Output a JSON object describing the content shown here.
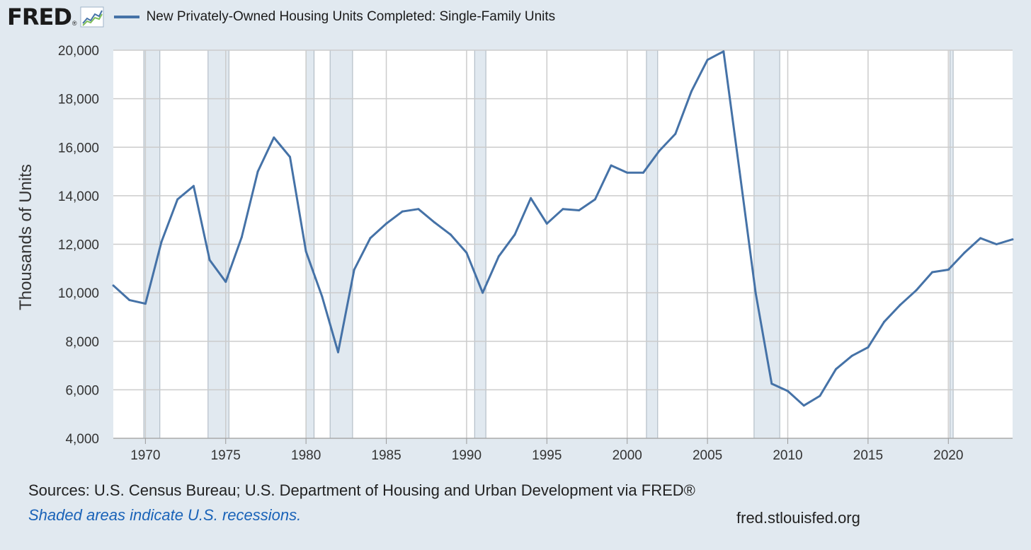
{
  "header": {
    "logo": "FRED",
    "logo_reg": "®",
    "legend_label": "New Privately-Owned Housing Units Completed: Single-Family Units"
  },
  "colors": {
    "series": "#4572a7",
    "recession": "#e1e9f0",
    "note": "#1a63b8",
    "grid": "#cccccc"
  },
  "footer": {
    "sources": "Sources: U.S. Census Bureau; U.S. Department of Housing and Urban Development via FRED®",
    "note": "Shaded areas indicate U.S. recessions.",
    "site": "fred.stlouisfed.org"
  },
  "chart_data": {
    "type": "line",
    "title": "",
    "ylabel": "Thousands of Units",
    "xlabel": "",
    "xlim": [
      1968,
      2024
    ],
    "ylim": [
      4000,
      20000
    ],
    "yticks": [
      4000,
      6000,
      8000,
      10000,
      12000,
      14000,
      16000,
      18000,
      20000
    ],
    "ytick_labels": [
      "4,000",
      "6,000",
      "8,000",
      "10,000",
      "12,000",
      "14,000",
      "16,000",
      "18,000",
      "20,000"
    ],
    "xticks": [
      1970,
      1975,
      1980,
      1985,
      1990,
      1995,
      2000,
      2005,
      2010,
      2015,
      2020
    ],
    "grid": true,
    "legend_position": "top",
    "recessions": [
      [
        1969.9,
        1970.9
      ],
      [
        1973.9,
        1975.2
      ],
      [
        1980.0,
        1980.5
      ],
      [
        1981.5,
        1982.9
      ],
      [
        1990.5,
        1991.2
      ],
      [
        2001.2,
        2001.9
      ],
      [
        2007.9,
        2009.5
      ],
      [
        2020.1,
        2020.3
      ]
    ],
    "series": [
      {
        "name": "New Privately-Owned Housing Units Completed: Single-Family Units",
        "x": [
          1968,
          1969,
          1970,
          1971,
          1972,
          1973,
          1974,
          1975,
          1976,
          1977,
          1978,
          1979,
          1980,
          1981,
          1982,
          1983,
          1984,
          1985,
          1986,
          1987,
          1988,
          1989,
          1990,
          1991,
          1992,
          1993,
          1994,
          1995,
          1996,
          1997,
          1998,
          1999,
          2000,
          2001,
          2002,
          2003,
          2004,
          2005,
          2006,
          2007,
          2008,
          2009,
          2010,
          2011,
          2012,
          2013,
          2014,
          2015,
          2016,
          2017,
          2018,
          2019,
          2020,
          2021,
          2022,
          2023,
          2024
        ],
        "values": [
          10300,
          9700,
          9550,
          12100,
          13850,
          14400,
          11350,
          10450,
          12300,
          15000,
          16400,
          15600,
          11700,
          9850,
          7550,
          10950,
          12250,
          12850,
          13350,
          13450,
          12900,
          12400,
          11650,
          10000,
          11500,
          12400,
          13900,
          12850,
          13450,
          13400,
          13850,
          15250,
          14950,
          14950,
          15850,
          16550,
          18300,
          19600,
          19950,
          15000,
          10000,
          6250,
          5950,
          5350,
          5750,
          6850,
          7400,
          7750,
          8800,
          9500,
          10100,
          10850,
          10950,
          11650,
          12250,
          12000,
          12200
        ]
      }
    ]
  }
}
